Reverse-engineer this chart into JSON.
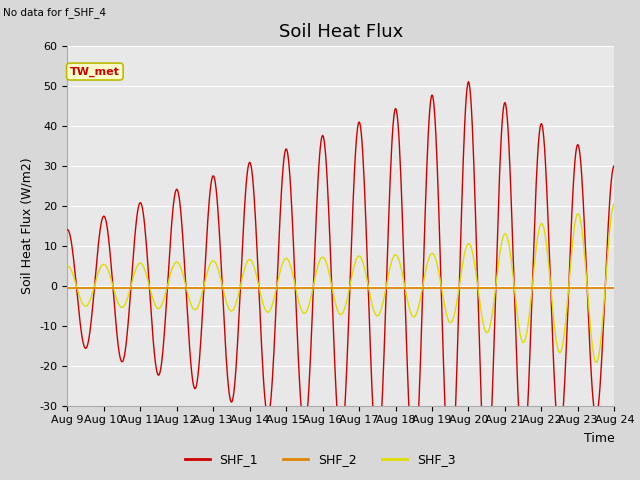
{
  "title": "Soil Heat Flux",
  "ylabel": "Soil Heat Flux (W/m2)",
  "xlabel": "Time",
  "note": "No data for f_SHF_4",
  "tw_met_label": "TW_met",
  "ylim": [
    -30,
    60
  ],
  "yticks": [
    -30,
    -20,
    -10,
    0,
    10,
    20,
    30,
    40,
    50,
    60
  ],
  "xtick_labels": [
    "Aug 9",
    "Aug 10",
    "Aug 11",
    "Aug 12",
    "Aug 13",
    "Aug 14",
    "Aug 15",
    "Aug 16",
    "Aug 17",
    "Aug 18",
    "Aug 19",
    "Aug 20",
    "Aug 21",
    "Aug 22",
    "Aug 23",
    "Aug 24"
  ],
  "shf1_color": "#cc0000",
  "shf2_color": "#dd8800",
  "shf3_color": "#dddd00",
  "bg_color": "#e8e8e8",
  "legend_entries": [
    "SHF_1",
    "SHF_2",
    "SHF_3"
  ],
  "legend_colors": [
    "#cc0000",
    "#dd8800",
    "#dddd00"
  ],
  "title_fontsize": 13,
  "label_fontsize": 9,
  "tick_fontsize": 8
}
